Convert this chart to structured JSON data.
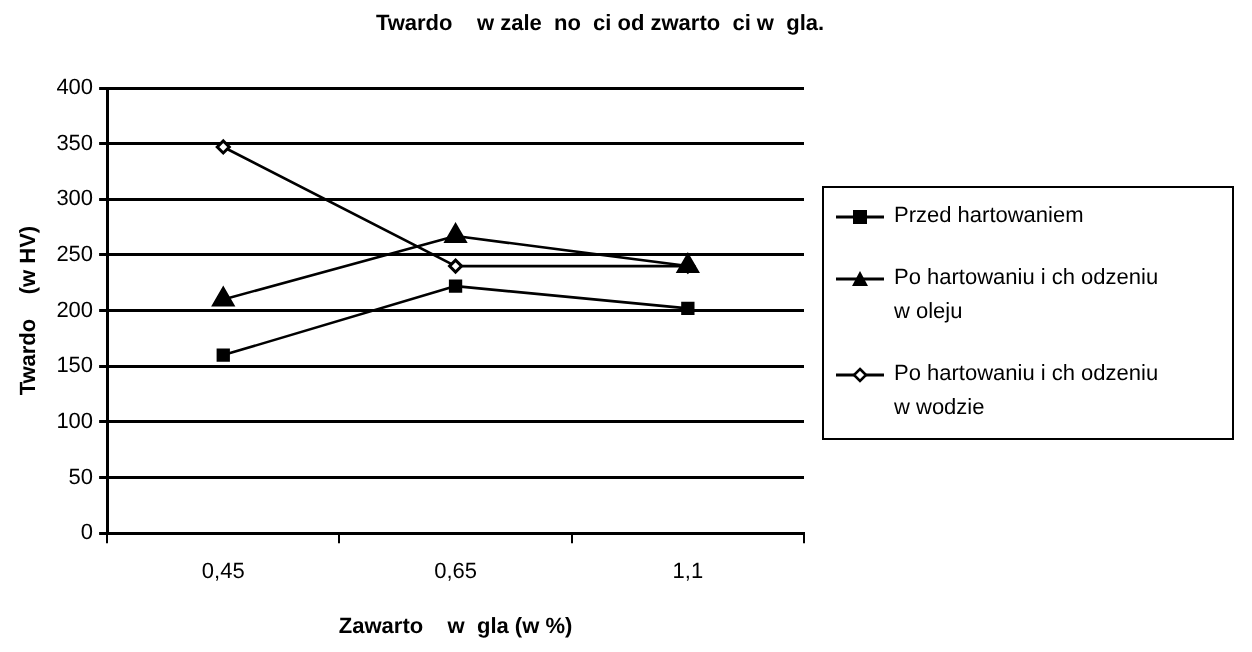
{
  "chart_data": {
    "type": "line",
    "title": "Twardo    w zale  no  ci od zwarto  ci w  gla.",
    "xlabel": "Zawarto    w  gla (w %)",
    "ylabel": "Twardo    (w HV)",
    "categories": [
      "0,45",
      "0,65",
      "1,1"
    ],
    "series": [
      {
        "name": "Przed hartowaniem",
        "color": "#000000",
        "marker": "square",
        "values": [
          160,
          222,
          202
        ]
      },
      {
        "name": "Po hartowaniu i ch odzeniu w oleju",
        "color": "#000000",
        "marker": "triangle",
        "values": [
          210,
          267,
          240
        ]
      },
      {
        "name": "Po hartowaniu i ch odzeniu w wodzie",
        "color": "#000000",
        "marker": "diamond",
        "values": [
          347,
          240,
          240
        ]
      }
    ],
    "ylim": [
      0,
      400
    ],
    "yticks": [
      0,
      50,
      100,
      150,
      200,
      250,
      300,
      350,
      400
    ],
    "grid": "y",
    "legend": "right",
    "line_style": "solid"
  }
}
